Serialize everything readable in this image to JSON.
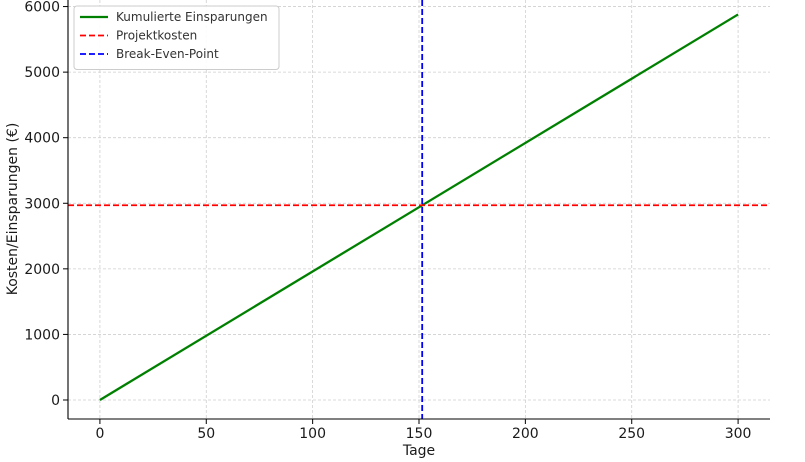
{
  "chart_data": {
    "type": "line",
    "title": "",
    "xlabel": "Tage",
    "ylabel": "Kosten/Einsparungen (€)",
    "xlim": [
      -15,
      315
    ],
    "ylim": [
      -290,
      6100
    ],
    "x_ticks": [
      0,
      50,
      100,
      150,
      200,
      250,
      300
    ],
    "y_ticks": [
      0,
      1000,
      2000,
      3000,
      4000,
      5000,
      6000
    ],
    "grid": true,
    "legend_position": "top-left",
    "series": [
      {
        "name": "Kumulierte Einsparungen",
        "style": "solid",
        "color": "#008000",
        "x": [
          0,
          300
        ],
        "y": [
          0,
          5880
        ]
      },
      {
        "name": "Projektkosten",
        "style": "dashed-horizontal",
        "color": "#ff0000",
        "y_value": 2970
      },
      {
        "name": "Break-Even-Point",
        "style": "dashed-vertical",
        "color": "#0000ff",
        "x_value": 151.5
      }
    ]
  }
}
